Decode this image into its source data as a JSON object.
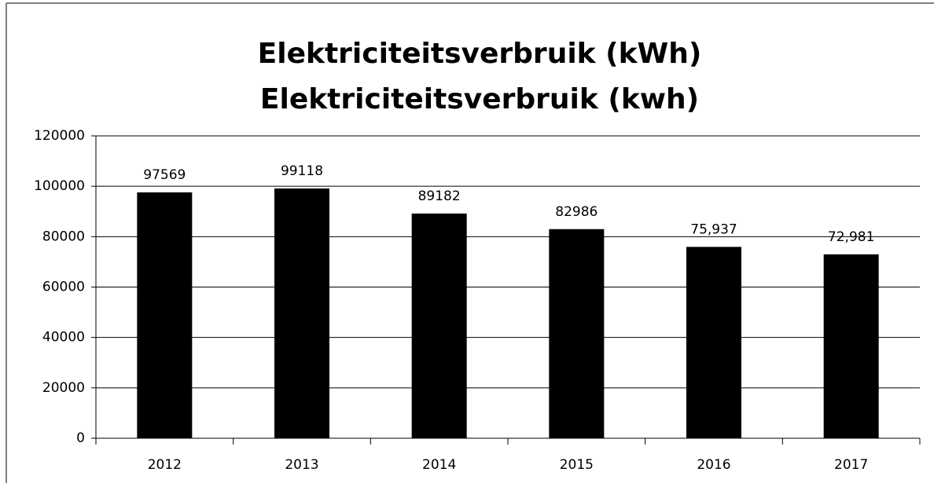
{
  "chart_data": {
    "type": "bar",
    "title": "Elektriciteitsverbruik (kWh)",
    "subtitle": "Elektriciteitsverbruik (kwh)",
    "categories": [
      "2012",
      "2013",
      "2014",
      "2015",
      "2016",
      "2017"
    ],
    "values": [
      97569,
      99118,
      89182,
      82986,
      75937,
      72981
    ],
    "value_labels": [
      "97569",
      "99118",
      "89182",
      "82986",
      "75,937",
      "72,981"
    ],
    "color": "#000000",
    "ylim": [
      0,
      120000
    ],
    "yticks": [
      0,
      20000,
      40000,
      60000,
      80000,
      100000,
      120000
    ],
    "grid": true
  }
}
